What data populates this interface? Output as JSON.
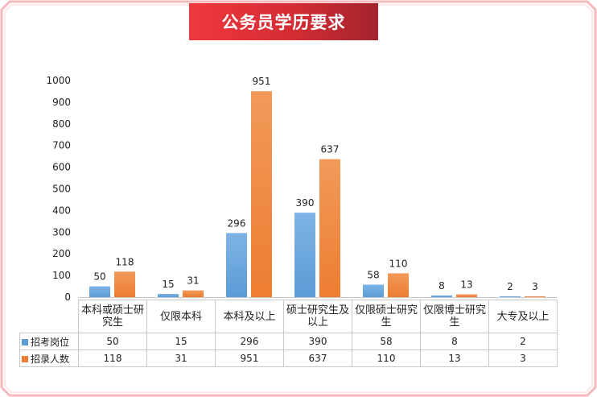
{
  "title": "公务员学历要求",
  "colors": {
    "series1": "#5b9bd5",
    "series2": "#ed7d31",
    "frame": "#f4b8bd",
    "title_bg": "#e2323a"
  },
  "chart_data": {
    "type": "bar",
    "title": "公务员学历要求",
    "categories": [
      "本科或硕士研究生",
      "仅限本科",
      "本科及以上",
      "硕士研究生及以上",
      "仅限硕士研究生",
      "仅限博士研究生",
      "大专及以上"
    ],
    "series": [
      {
        "name": "招考岗位",
        "values": [
          50,
          15,
          296,
          390,
          58,
          8,
          2
        ]
      },
      {
        "name": "招录人数",
        "values": [
          118,
          31,
          951,
          637,
          110,
          13,
          3
        ]
      }
    ],
    "ylim": [
      0,
      1000
    ],
    "yticks": [
      0,
      100,
      200,
      300,
      400,
      500,
      600,
      700,
      800,
      900,
      1000
    ],
    "grid": false,
    "legend": "data-table",
    "xlabel": "",
    "ylabel": ""
  }
}
